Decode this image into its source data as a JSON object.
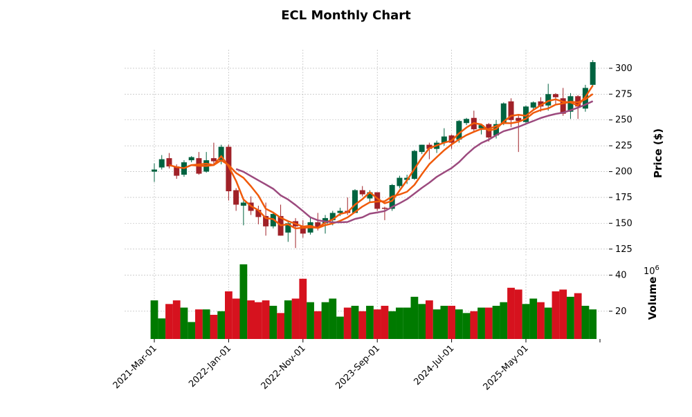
{
  "chart_data": {
    "type": "candlestick",
    "title": "ECL Monthly Chart",
    "ylabel": "Price ($)",
    "volume_label": "Volume",
    "volume_exponent": "10",
    "volume_exponent_power": "6",
    "ylim": [
      117.5,
      318
    ],
    "volume_ylim": [
      4.6,
      49
    ],
    "yticks": [
      125,
      150,
      175,
      200,
      225,
      250,
      275,
      300
    ],
    "volume_yticks": [
      20,
      40
    ],
    "xtick_labels": [
      "2021-Mar-01",
      "2022-Jan-01",
      "2022-Nov-01",
      "2023-Sep-01",
      "2024-Jul-01",
      "2025-May-01"
    ],
    "xtick_index": [
      0,
      10,
      20,
      30,
      40,
      50
    ],
    "grid": true,
    "moving_averages": [
      3,
      6,
      12
    ],
    "colors": {
      "up": "#006340",
      "down": "#a02128",
      "vol_up": "#007a00",
      "vol_down": "#d6121e",
      "mav": [
        "#f05a0a",
        "#f05a0a",
        "#9c4a7e"
      ],
      "grid": "#b0b0b0"
    },
    "ohlc": [
      [
        200,
        208,
        190,
        202
      ],
      [
        204,
        216,
        202,
        212
      ],
      [
        213,
        218,
        203,
        205
      ],
      [
        205,
        207,
        193,
        196
      ],
      [
        197,
        211,
        195,
        209
      ],
      [
        211,
        215,
        209,
        214
      ],
      [
        213,
        219,
        197,
        198
      ],
      [
        200,
        219,
        199,
        211
      ],
      [
        213,
        228,
        207,
        210
      ],
      [
        211,
        226,
        207,
        224
      ],
      [
        224,
        226,
        172,
        181
      ],
      [
        182,
        184,
        162,
        168
      ],
      [
        167,
        172,
        148,
        170
      ],
      [
        170,
        176,
        158,
        162
      ],
      [
        163,
        167,
        149,
        156
      ],
      [
        157,
        170,
        138,
        147
      ],
      [
        147,
        161,
        145,
        159
      ],
      [
        157,
        168,
        138,
        138
      ],
      [
        141,
        152,
        132,
        150
      ],
      [
        152,
        155,
        126,
        147
      ],
      [
        147,
        153,
        136,
        140
      ],
      [
        141,
        155,
        139,
        151
      ],
      [
        151,
        160,
        143,
        146
      ],
      [
        150,
        158,
        140,
        155
      ],
      [
        153,
        162,
        148,
        160
      ],
      [
        160,
        165,
        157,
        162
      ],
      [
        162,
        175,
        158,
        160
      ],
      [
        160,
        183,
        160,
        182
      ],
      [
        182,
        186,
        176,
        178
      ],
      [
        174,
        182,
        170,
        180
      ],
      [
        180,
        180,
        162,
        164
      ],
      [
        165,
        166,
        153,
        164
      ],
      [
        164,
        188,
        162,
        187
      ],
      [
        186,
        196,
        184,
        194
      ],
      [
        192,
        197,
        188,
        194
      ],
      [
        193,
        221,
        192,
        220
      ],
      [
        219,
        226,
        217,
        226
      ],
      [
        226,
        228,
        212,
        222
      ],
      [
        222,
        230,
        218,
        228
      ],
      [
        228,
        242,
        225,
        234
      ],
      [
        235,
        236,
        222,
        228
      ],
      [
        231,
        250,
        228,
        249
      ],
      [
        247,
        252,
        245,
        251
      ],
      [
        252,
        259,
        238,
        241
      ],
      [
        242,
        246,
        236,
        245
      ],
      [
        246,
        247,
        229,
        233
      ],
      [
        235,
        250,
        232,
        246
      ],
      [
        247,
        267,
        245,
        266
      ],
      [
        268,
        271,
        243,
        250
      ],
      [
        252,
        255,
        219,
        249
      ],
      [
        248,
        264,
        246,
        263
      ],
      [
        262,
        268,
        260,
        267
      ],
      [
        268,
        272,
        258,
        263
      ],
      [
        264,
        285,
        259,
        275
      ],
      [
        275,
        276,
        265,
        272
      ],
      [
        271,
        281,
        254,
        256
      ],
      [
        258,
        276,
        251,
        273
      ],
      [
        273,
        274,
        251,
        263
      ],
      [
        261,
        284,
        258,
        281
      ],
      [
        284,
        308,
        283,
        306
      ]
    ],
    "volume": [
      26,
      16,
      24,
      26,
      22,
      14,
      21,
      21,
      18,
      20,
      31,
      27,
      46,
      26,
      25,
      26,
      23,
      19,
      26,
      27,
      38,
      25,
      20,
      25,
      27,
      17,
      22,
      23,
      20,
      23,
      21,
      23,
      20,
      22,
      22,
      28,
      24,
      26,
      21,
      23,
      23,
      21,
      19,
      20,
      22,
      22,
      23,
      25,
      33,
      32,
      24,
      27,
      25,
      22,
      31,
      32,
      28,
      30,
      23,
      21
    ]
  }
}
